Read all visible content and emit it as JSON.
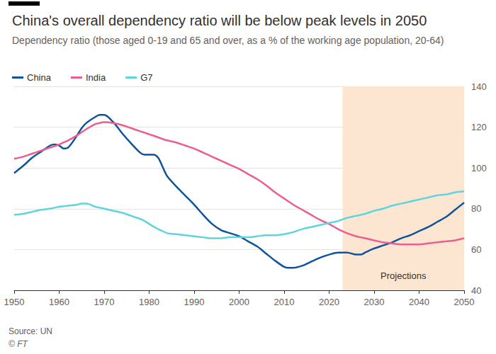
{
  "chart_data": {
    "type": "line",
    "title": "China's overall dependency ratio will be below peak levels in 2050",
    "subtitle": "Dependency ratio (those aged 0-19 and 65 and over, as a % of the working age population, 20-64)",
    "x": [
      1950,
      1952,
      1954,
      1956,
      1958,
      1959,
      1960,
      1961,
      1962,
      1964,
      1965,
      1966,
      1968,
      1969,
      1970,
      1972,
      1974,
      1976,
      1978,
      1979,
      1980,
      1981,
      1982,
      1983,
      1984,
      1986,
      1988,
      1990,
      1992,
      1994,
      1996,
      1998,
      2000,
      2002,
      2004,
      2006,
      2008,
      2010,
      2011,
      2012,
      2014,
      2016,
      2018,
      2020,
      2022,
      2024,
      2026,
      2027,
      2028,
      2030,
      2032,
      2034,
      2036,
      2038,
      2040,
      2042,
      2044,
      2046,
      2048,
      2050
    ],
    "series": [
      {
        "name": "China",
        "color": "#0f5499",
        "values": [
          97.5,
          101,
          105,
          108,
          111,
          111.5,
          111,
          109.5,
          110,
          116,
          119.5,
          122,
          125,
          126,
          126,
          122.5,
          117,
          112,
          107.5,
          106.5,
          106.5,
          106.5,
          105,
          100.5,
          96,
          91,
          86.5,
          82,
          77,
          72.5,
          69.5,
          68,
          66.5,
          64,
          61.5,
          58,
          54.5,
          51.5,
          51,
          51,
          52,
          54,
          56,
          57.5,
          58.5,
          58.5,
          57.5,
          57.5,
          58.5,
          60.5,
          62,
          63.5,
          65.5,
          67,
          69,
          71,
          73.5,
          76,
          79.5,
          83
        ]
      },
      {
        "name": "India",
        "color": "#eb5e8d",
        "values": [
          104.5,
          105.5,
          107,
          108.5,
          110,
          110.7,
          111.5,
          112.5,
          113.5,
          116,
          117.5,
          119,
          121.5,
          122,
          122.5,
          122,
          121,
          119.5,
          118,
          117.3,
          116.5,
          115.8,
          115,
          114.2,
          113.5,
          112.5,
          111,
          109.5,
          107.5,
          105.5,
          103.5,
          101.5,
          99.5,
          97,
          94.5,
          91.5,
          88,
          85,
          83.5,
          82,
          79.5,
          77,
          74.5,
          72.5,
          70,
          68,
          66.5,
          66,
          65.5,
          64.5,
          63.5,
          63,
          62.5,
          62.5,
          62.5,
          63,
          63.5,
          64,
          64.5,
          65.5
        ]
      },
      {
        "name": "G7",
        "color": "#5fd3de",
        "values": [
          77,
          77.5,
          78.5,
          79.5,
          80,
          80.5,
          81,
          81.2,
          81.5,
          82,
          82.5,
          82.5,
          81,
          80.5,
          80,
          79,
          78,
          76.5,
          75,
          74,
          72.5,
          71.2,
          70,
          69,
          68,
          67.5,
          67,
          66.5,
          66,
          65.5,
          65.5,
          66,
          66,
          66,
          66.5,
          67,
          67,
          67.5,
          68,
          68.5,
          70,
          71,
          72,
          73,
          74,
          75.5,
          76.5,
          77,
          77.5,
          79,
          80,
          81.5,
          82.5,
          83.5,
          84.5,
          85.5,
          86.5,
          87,
          88,
          88.5
        ]
      }
    ],
    "xlim": [
      1950,
      2050
    ],
    "xticks": [
      1950,
      1960,
      1970,
      1980,
      1990,
      2000,
      2010,
      2020,
      2030,
      2040,
      2050
    ],
    "ylim": [
      40,
      140
    ],
    "yticks": [
      40,
      60,
      80,
      100,
      120,
      140
    ],
    "grid": true,
    "legend": "top-left",
    "projection": {
      "label": "Projections",
      "x_start": 2023,
      "x_end": 2050
    },
    "source": "Source: UN",
    "credit": "© FT"
  }
}
